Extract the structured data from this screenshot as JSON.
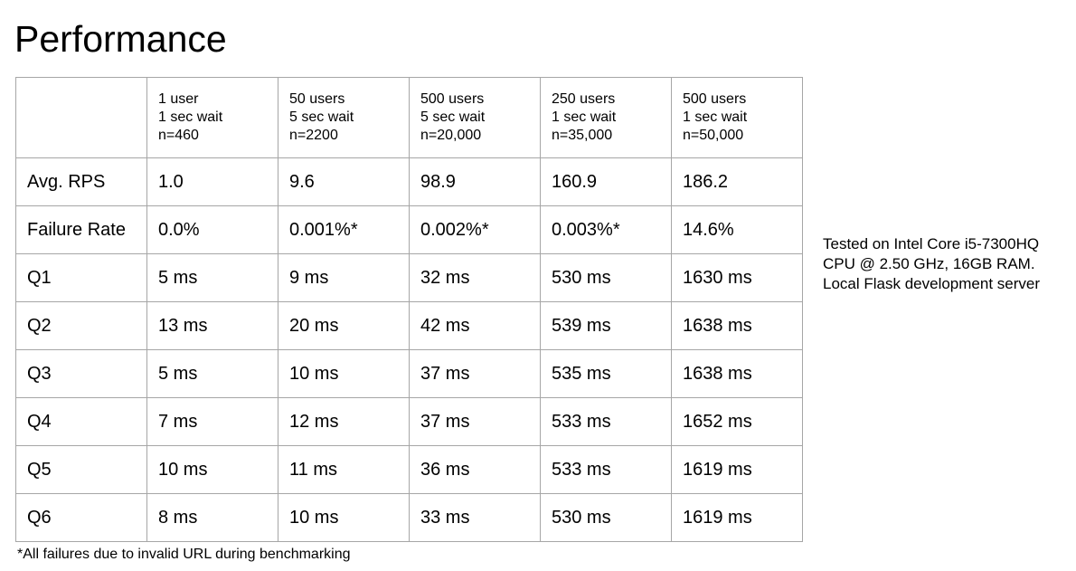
{
  "title": "Performance",
  "table": {
    "columns": [
      {
        "lines": [
          "1 user",
          "1 sec wait",
          "n=460"
        ]
      },
      {
        "lines": [
          "50 users",
          "5 sec wait",
          "n=2200"
        ]
      },
      {
        "lines": [
          "500 users",
          "5 sec wait",
          "n=20,000"
        ]
      },
      {
        "lines": [
          "250 users",
          "1 sec wait",
          "n=35,000"
        ]
      },
      {
        "lines": [
          "500 users",
          "1 sec wait",
          "n=50,000"
        ]
      }
    ],
    "rows": [
      {
        "label": "Avg. RPS",
        "values": [
          "1.0",
          "9.6",
          "98.9",
          "160.9",
          "186.2"
        ]
      },
      {
        "label": "Failure Rate",
        "values": [
          "0.0%",
          "0.001%*",
          "0.002%*",
          "0.003%*",
          "14.6%"
        ]
      },
      {
        "label": "Q1",
        "values": [
          "5 ms",
          "9 ms",
          "32 ms",
          "530 ms",
          "1630 ms"
        ]
      },
      {
        "label": "Q2",
        "values": [
          "13 ms",
          "20 ms",
          "42 ms",
          "539 ms",
          "1638 ms"
        ]
      },
      {
        "label": "Q3",
        "values": [
          "5 ms",
          "10 ms",
          "37 ms",
          "535 ms",
          "1638 ms"
        ]
      },
      {
        "label": "Q4",
        "values": [
          "7 ms",
          "12 ms",
          "37 ms",
          "533 ms",
          "1652 ms"
        ]
      },
      {
        "label": "Q5",
        "values": [
          "10 ms",
          "11 ms",
          "36 ms",
          "533 ms",
          "1619 ms"
        ]
      },
      {
        "label": "Q6",
        "values": [
          "8 ms",
          "10 ms",
          "33 ms",
          "530 ms",
          "1619 ms"
        ]
      }
    ]
  },
  "note": {
    "lines": [
      "Tested on Intel Core i5-7300HQ",
      "CPU @ 2.50 GHz, 16GB RAM.",
      "Local Flask development server"
    ]
  },
  "footnote": "*All failures due to invalid URL during benchmarking",
  "colors": {
    "text": "#000000",
    "grid": "#a6a6a6",
    "background": "#ffffff"
  }
}
